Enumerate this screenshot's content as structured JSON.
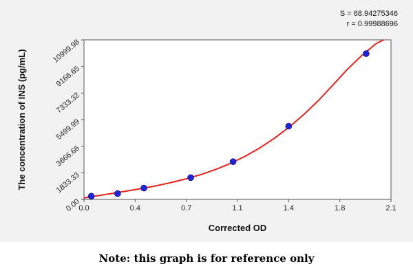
{
  "caption": "Note: this graph is for reference only",
  "stats": {
    "s_line": "S = 68.94275346",
    "r_line": "r = 0.99988696"
  },
  "chart_data": {
    "type": "scatter",
    "xlabel": "Corrected OD",
    "ylabel": "The concentration of INS (pg/mL)",
    "xlim": [
      0.0,
      2.1
    ],
    "ylim": [
      0.0,
      10999.98
    ],
    "x_ticks": [
      "0.0",
      "0.4",
      "0.7",
      "1.1",
      "1.4",
      "1.8",
      "2.1"
    ],
    "x_tick_values": [
      0.0,
      0.35,
      0.7,
      1.05,
      1.4,
      1.75,
      2.1
    ],
    "y_ticks": [
      "0.00",
      "1833.33",
      "3666.66",
      "5499.99",
      "7333.32",
      "9166.65",
      "10999.98"
    ],
    "y_tick_values": [
      0.0,
      1833.33,
      3666.66,
      5499.99,
      7333.32,
      9166.65,
      10999.98
    ],
    "grid": false,
    "series": [
      {
        "kind": "points",
        "color": "#1f22d6",
        "x": [
          0.05,
          0.23,
          0.41,
          0.73,
          1.02,
          1.4,
          1.93
        ],
        "y": [
          220,
          400,
          780,
          1500,
          2600,
          5050,
          10050
        ]
      },
      {
        "kind": "fit-curve",
        "color": "#e8201c",
        "x": [
          0.0,
          0.1,
          0.2,
          0.3,
          0.4,
          0.5,
          0.6,
          0.7,
          0.8,
          0.9,
          1.0,
          1.1,
          1.2,
          1.3,
          1.4,
          1.5,
          1.6,
          1.7,
          1.8,
          1.9,
          2.0,
          2.05
        ],
        "y": [
          100,
          260,
          420,
          590,
          760,
          950,
          1170,
          1420,
          1710,
          2060,
          2470,
          2960,
          3530,
          4200,
          4950,
          5820,
          6780,
          7850,
          8950,
          9920,
          10760,
          11000
        ]
      }
    ]
  }
}
